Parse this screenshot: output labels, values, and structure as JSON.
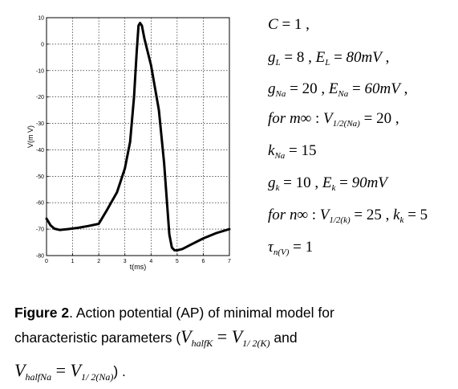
{
  "chart_data": {
    "type": "line",
    "title": "",
    "xlabel": "t(ms)",
    "ylabel": "V(m V)",
    "xlim": [
      0,
      7
    ],
    "ylim": [
      -80,
      10
    ],
    "xticks": [
      0,
      1,
      2,
      3,
      4,
      5,
      6,
      7
    ],
    "yticks": [
      10,
      0,
      -10,
      -20,
      -30,
      -40,
      -50,
      -60,
      -70,
      -80
    ],
    "grid": true,
    "series": [
      {
        "x": [
          0.0,
          0.15,
          0.3,
          0.5,
          0.8,
          1.2,
          1.6,
          2.0,
          2.3,
          2.7,
          3.0,
          3.2,
          3.35,
          3.45,
          3.52,
          3.58,
          3.65,
          3.75,
          4.0,
          4.3,
          4.5,
          4.7,
          4.8,
          4.9,
          5.0,
          5.2,
          5.5,
          6.0,
          6.5,
          7.0
        ],
        "y": [
          -66,
          -68.5,
          -69.8,
          -70.3,
          -70,
          -69.5,
          -68.8,
          -68,
          -63,
          -56,
          -47,
          -37,
          -20,
          -3,
          7,
          8,
          7,
          2,
          -8,
          -25,
          -45,
          -72,
          -77,
          -78,
          -78,
          -77.5,
          -76,
          -73.5,
          -71.5,
          -70
        ]
      }
    ]
  },
  "params": {
    "line1": "C = 1 ,",
    "line2": "g_L = 8 , E_L =  80mV ,",
    "line3": "g_Na = 20 , E_Na = 60mV ,",
    "line4": "for m∞ : V_1/2(Na) =  20 ,",
    "line5": "k_Na = 15",
    "line6": "g_k = 10 , E_k =  90mV",
    "line7": "for n∞ : V_1/2(k) =  25 , k_k = 5",
    "line8": "τ_n(V) = 1"
  },
  "caption": {
    "label": "Figure 2",
    "text1": ". Action potential (AP) of minimal model for",
    "text2": "characteristic parameters (",
    "m1": "V",
    "m1sub": "halfK",
    "eq1": " = ",
    "m2": "V",
    "m2sub": "1/ 2(K)",
    "text3": " and",
    "m3": "V",
    "m3sub": "halfNa",
    "eq2": " = ",
    "m4": "V",
    "m4sub": "1/ 2(Na)",
    "text4": ") ."
  }
}
